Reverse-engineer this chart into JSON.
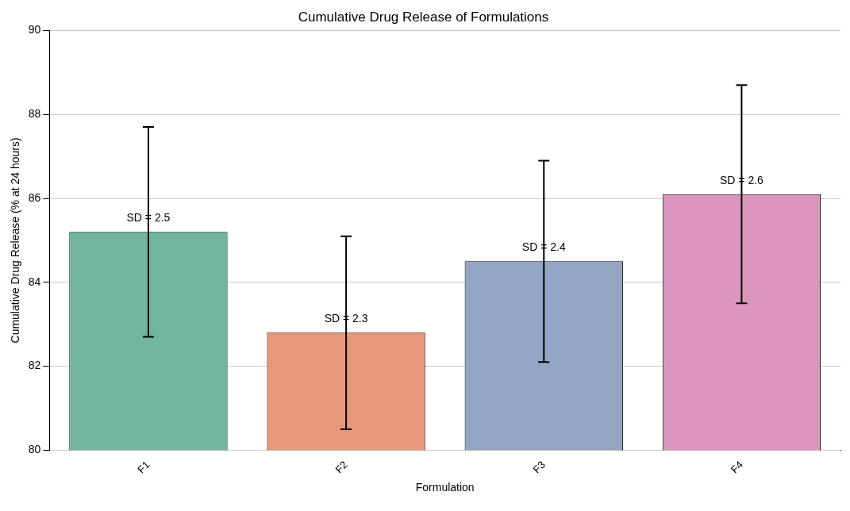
{
  "chart_data": {
    "type": "bar",
    "title": "Cumulative Drug Release of Formulations",
    "xlabel": "Formulation",
    "ylabel": "Cumulative Drug Release (% at 24 hours)",
    "categories": [
      "F1",
      "F2",
      "F3",
      "F4"
    ],
    "values": [
      85.2,
      82.8,
      84.5,
      86.1
    ],
    "errors": [
      2.5,
      2.3,
      2.4,
      2.6
    ],
    "colors": [
      "#72b5a0",
      "#e8987a",
      "#94a5c3",
      "#db96bf"
    ],
    "ylim": [
      80,
      90
    ],
    "yticks": [
      80,
      82,
      84,
      86,
      88,
      90
    ],
    "grid": "y",
    "annotations": [
      {
        "text": "SD = 2.5",
        "x": "F1",
        "y": 85.2
      },
      {
        "text": "SD = 2.3",
        "x": "F2",
        "y": 82.8
      },
      {
        "text": "SD = 2.4",
        "x": "F3",
        "y": 84.5
      },
      {
        "text": "SD = 2.6",
        "x": "F4",
        "y": 86.1
      }
    ]
  }
}
